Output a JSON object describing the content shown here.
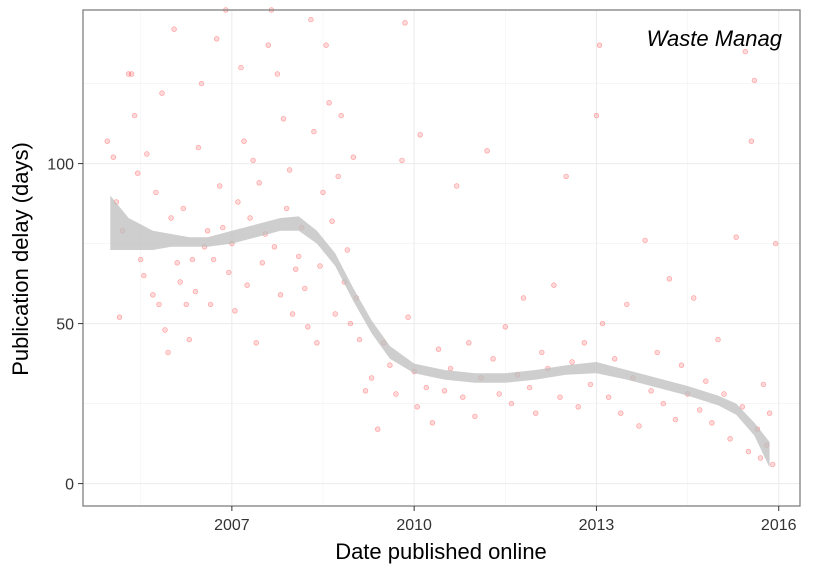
{
  "chart_data": {
    "type": "scatter",
    "title": "",
    "panel_label": "Waste Manag",
    "xlabel": "Date published online",
    "ylabel": "Publication delay (days)",
    "x_ticks": [
      {
        "value": 2007,
        "label": "2007"
      },
      {
        "value": 2010,
        "label": "2010"
      },
      {
        "value": 2013,
        "label": "2013"
      },
      {
        "value": 2016,
        "label": "2016"
      }
    ],
    "y_ticks": [
      {
        "value": 0,
        "label": "0"
      },
      {
        "value": 50,
        "label": "50"
      },
      {
        "value": 100,
        "label": "100"
      }
    ],
    "xlim": [
      2004.55,
      2016.35
    ],
    "ylim": [
      -7,
      148
    ],
    "grid": true,
    "point_color": "#ff0000",
    "smooth_fill_color": "#bebebe",
    "smooth": [
      {
        "x": 2005.0,
        "y": 81,
        "lower": 73,
        "upper": 90
      },
      {
        "x": 2005.3,
        "y": 77,
        "lower": 73,
        "upper": 83
      },
      {
        "x": 2005.7,
        "y": 76,
        "lower": 73,
        "upper": 79
      },
      {
        "x": 2006.0,
        "y": 76,
        "lower": 74,
        "upper": 78
      },
      {
        "x": 2006.3,
        "y": 75.5,
        "lower": 74,
        "upper": 77
      },
      {
        "x": 2006.6,
        "y": 75.5,
        "lower": 74,
        "upper": 77
      },
      {
        "x": 2007.0,
        "y": 77,
        "lower": 75,
        "upper": 79
      },
      {
        "x": 2007.4,
        "y": 79,
        "lower": 77,
        "upper": 81
      },
      {
        "x": 2007.8,
        "y": 81,
        "lower": 79,
        "upper": 83
      },
      {
        "x": 2008.1,
        "y": 81,
        "lower": 79,
        "upper": 83.5
      },
      {
        "x": 2008.4,
        "y": 77,
        "lower": 75,
        "upper": 79
      },
      {
        "x": 2008.7,
        "y": 70,
        "lower": 68,
        "upper": 72
      },
      {
        "x": 2009.0,
        "y": 59,
        "lower": 57,
        "upper": 61
      },
      {
        "x": 2009.3,
        "y": 49,
        "lower": 47,
        "upper": 51
      },
      {
        "x": 2009.6,
        "y": 41,
        "lower": 39,
        "upper": 43
      },
      {
        "x": 2010.0,
        "y": 36,
        "lower": 34.5,
        "upper": 37.5
      },
      {
        "x": 2010.5,
        "y": 34,
        "lower": 32.5,
        "upper": 35.5
      },
      {
        "x": 2011.0,
        "y": 33,
        "lower": 31.5,
        "upper": 34.5
      },
      {
        "x": 2011.5,
        "y": 33,
        "lower": 31.5,
        "upper": 34.5
      },
      {
        "x": 2012.0,
        "y": 34,
        "lower": 32.5,
        "upper": 35.5
      },
      {
        "x": 2012.5,
        "y": 35.5,
        "lower": 34,
        "upper": 37
      },
      {
        "x": 2013.0,
        "y": 36,
        "lower": 34.5,
        "upper": 38
      },
      {
        "x": 2013.5,
        "y": 34,
        "lower": 32.5,
        "upper": 35.5
      },
      {
        "x": 2014.0,
        "y": 31.5,
        "lower": 30,
        "upper": 33
      },
      {
        "x": 2014.5,
        "y": 29,
        "lower": 27.5,
        "upper": 30.5
      },
      {
        "x": 2015.0,
        "y": 26,
        "lower": 24.5,
        "upper": 27.5
      },
      {
        "x": 2015.3,
        "y": 23,
        "lower": 21.5,
        "upper": 25
      },
      {
        "x": 2015.6,
        "y": 17,
        "lower": 15,
        "upper": 19
      },
      {
        "x": 2015.85,
        "y": 9,
        "lower": 5,
        "upper": 13
      }
    ],
    "points": [
      [
        2004.95,
        107
      ],
      [
        2005.05,
        102
      ],
      [
        2005.1,
        88
      ],
      [
        2005.15,
        52
      ],
      [
        2005.2,
        79
      ],
      [
        2005.3,
        128
      ],
      [
        2005.35,
        128
      ],
      [
        2005.4,
        115
      ],
      [
        2005.45,
        97
      ],
      [
        2005.5,
        70
      ],
      [
        2005.55,
        65
      ],
      [
        2005.6,
        103
      ],
      [
        2005.7,
        59
      ],
      [
        2005.75,
        91
      ],
      [
        2005.8,
        56
      ],
      [
        2005.85,
        122
      ],
      [
        2005.9,
        48
      ],
      [
        2005.95,
        41
      ],
      [
        2006.0,
        83
      ],
      [
        2006.05,
        142
      ],
      [
        2006.1,
        69
      ],
      [
        2006.15,
        63
      ],
      [
        2006.2,
        86
      ],
      [
        2006.25,
        56
      ],
      [
        2006.3,
        45
      ],
      [
        2006.35,
        70
      ],
      [
        2006.4,
        60
      ],
      [
        2006.45,
        105
      ],
      [
        2006.5,
        125
      ],
      [
        2006.55,
        74
      ],
      [
        2006.6,
        79
      ],
      [
        2006.65,
        56
      ],
      [
        2006.7,
        70
      ],
      [
        2006.75,
        139
      ],
      [
        2006.8,
        93
      ],
      [
        2006.85,
        80
      ],
      [
        2006.9,
        148
      ],
      [
        2006.95,
        66
      ],
      [
        2007.0,
        75
      ],
      [
        2007.05,
        54
      ],
      [
        2007.1,
        88
      ],
      [
        2007.15,
        130
      ],
      [
        2007.2,
        107
      ],
      [
        2007.25,
        62
      ],
      [
        2007.3,
        83
      ],
      [
        2007.35,
        101
      ],
      [
        2007.4,
        44
      ],
      [
        2007.45,
        94
      ],
      [
        2007.5,
        69
      ],
      [
        2007.55,
        78
      ],
      [
        2007.6,
        137
      ],
      [
        2007.65,
        148
      ],
      [
        2007.7,
        74
      ],
      [
        2007.75,
        128
      ],
      [
        2007.8,
        59
      ],
      [
        2007.85,
        114
      ],
      [
        2007.9,
        86
      ],
      [
        2007.95,
        98
      ],
      [
        2008.0,
        53
      ],
      [
        2008.05,
        67
      ],
      [
        2008.1,
        71
      ],
      [
        2008.15,
        80
      ],
      [
        2008.2,
        61
      ],
      [
        2008.25,
        49
      ],
      [
        2008.3,
        145
      ],
      [
        2008.35,
        110
      ],
      [
        2008.4,
        44
      ],
      [
        2008.45,
        68
      ],
      [
        2008.5,
        91
      ],
      [
        2008.55,
        137
      ],
      [
        2008.6,
        119
      ],
      [
        2008.65,
        82
      ],
      [
        2008.7,
        53
      ],
      [
        2008.75,
        96
      ],
      [
        2008.8,
        115
      ],
      [
        2008.85,
        63
      ],
      [
        2008.9,
        73
      ],
      [
        2008.95,
        50
      ],
      [
        2009.0,
        102
      ],
      [
        2009.05,
        58
      ],
      [
        2009.1,
        45
      ],
      [
        2009.2,
        29
      ],
      [
        2009.3,
        33
      ],
      [
        2009.4,
        17
      ],
      [
        2009.5,
        44
      ],
      [
        2009.6,
        37
      ],
      [
        2009.7,
        28
      ],
      [
        2009.8,
        101
      ],
      [
        2009.85,
        144
      ],
      [
        2009.9,
        52
      ],
      [
        2010.0,
        35
      ],
      [
        2010.05,
        24
      ],
      [
        2010.1,
        109
      ],
      [
        2010.2,
        30
      ],
      [
        2010.3,
        19
      ],
      [
        2010.4,
        42
      ],
      [
        2010.5,
        29
      ],
      [
        2010.6,
        36
      ],
      [
        2010.7,
        93
      ],
      [
        2010.8,
        27
      ],
      [
        2010.9,
        44
      ],
      [
        2011.0,
        21
      ],
      [
        2011.1,
        33
      ],
      [
        2011.2,
        104
      ],
      [
        2011.3,
        39
      ],
      [
        2011.4,
        28
      ],
      [
        2011.5,
        49
      ],
      [
        2011.6,
        25
      ],
      [
        2011.7,
        34
      ],
      [
        2011.8,
        58
      ],
      [
        2011.9,
        30
      ],
      [
        2012.0,
        22
      ],
      [
        2012.1,
        41
      ],
      [
        2012.2,
        36
      ],
      [
        2012.3,
        62
      ],
      [
        2012.4,
        27
      ],
      [
        2012.5,
        96
      ],
      [
        2012.6,
        38
      ],
      [
        2012.7,
        24
      ],
      [
        2012.8,
        44
      ],
      [
        2012.9,
        31
      ],
      [
        2013.0,
        115
      ],
      [
        2013.05,
        137
      ],
      [
        2013.1,
        50
      ],
      [
        2013.2,
        27
      ],
      [
        2013.3,
        39
      ],
      [
        2013.4,
        22
      ],
      [
        2013.5,
        56
      ],
      [
        2013.6,
        33
      ],
      [
        2013.7,
        18
      ],
      [
        2013.8,
        76
      ],
      [
        2013.9,
        29
      ],
      [
        2014.0,
        41
      ],
      [
        2014.1,
        25
      ],
      [
        2014.2,
        64
      ],
      [
        2014.3,
        20
      ],
      [
        2014.4,
        37
      ],
      [
        2014.5,
        28
      ],
      [
        2014.6,
        58
      ],
      [
        2014.7,
        23
      ],
      [
        2014.8,
        32
      ],
      [
        2014.9,
        19
      ],
      [
        2015.0,
        45
      ],
      [
        2015.1,
        28
      ],
      [
        2015.2,
        14
      ],
      [
        2015.3,
        77
      ],
      [
        2015.4,
        24
      ],
      [
        2015.45,
        135
      ],
      [
        2015.5,
        10
      ],
      [
        2015.55,
        107
      ],
      [
        2015.6,
        126
      ],
      [
        2015.65,
        17
      ],
      [
        2015.7,
        8
      ],
      [
        2015.75,
        31
      ],
      [
        2015.8,
        12
      ],
      [
        2015.85,
        22
      ],
      [
        2015.9,
        6
      ],
      [
        2015.95,
        75
      ]
    ]
  }
}
